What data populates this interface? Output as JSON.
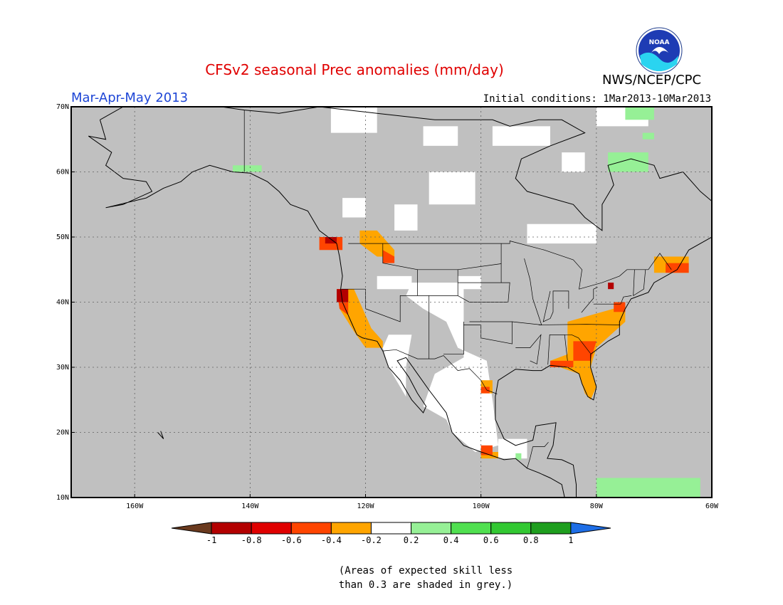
{
  "title": "CFSv2 seasonal Prec anomalies (mm/day)",
  "title_color": "#e00000",
  "period": "Mar-Apr-May 2013",
  "period_color": "#1e46d6",
  "initial_conditions": "Initial conditions: 1Mar2013-10Mar2013",
  "agency": "NWS/NCEP/CPC",
  "logo_text": "NOAA",
  "note_line1": "(Areas of expected skill less",
  "note_line2": "than 0.3 are shaded in grey.)",
  "map": {
    "ocean_color": "#c0c0c0",
    "lat_labels": [
      "70N",
      "60N",
      "50N",
      "40N",
      "30N",
      "20N",
      "10N"
    ],
    "lon_labels": [
      "160W",
      "140W",
      "120W",
      "100W",
      "80W",
      "60W"
    ],
    "lon_values": [
      -160,
      -140,
      -120,
      -100,
      -80,
      -60
    ],
    "lat_values": [
      70,
      60,
      50,
      40,
      30,
      20,
      10
    ],
    "lon_range": [
      -171,
      -60
    ],
    "lat_range": [
      10,
      70
    ]
  },
  "colorbar": {
    "ticks": [
      "-1",
      "-0.8",
      "-0.6",
      "-0.4",
      "-0.2",
      "0.2",
      "0.4",
      "0.6",
      "0.8",
      "1"
    ],
    "colors": [
      "#6a3a1e",
      "#b30000",
      "#e00000",
      "#ff4500",
      "#ffa500",
      "#ffffff",
      "#96f096",
      "#50e050",
      "#32c832",
      "#1e9e1e",
      "#1e6ee6"
    ]
  }
}
